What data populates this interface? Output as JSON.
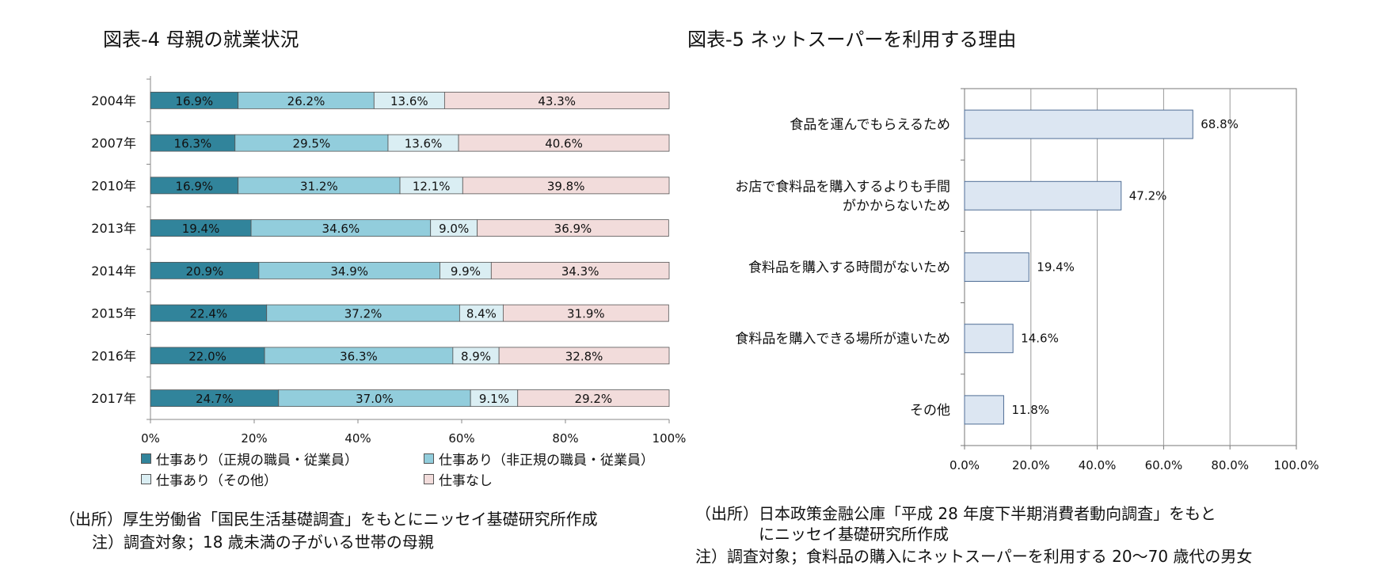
{
  "fig4": {
    "title": "図表-4  母親の就業状況",
    "notes": [
      "（出所）厚生労働省「国民生活基礎調査」をもとにニッセイ基礎研究所作成",
      "注）調査対象；18 歳未満の子がいる世帯の母親"
    ]
  },
  "fig5": {
    "title": "図表-5  ネットスーパーを利用する理由",
    "notes": [
      "（出所）日本政策金融公庫「平成 28 年度下半期消費者動向調査」をもと",
      "にニッセイ基礎研究所作成",
      "注）調査対象；食料品の購入にネットスーパーを利用する 20～70 歳代の男女"
    ]
  },
  "chart_data": [
    {
      "type": "bar",
      "orientation": "horizontal",
      "stacked": "percent",
      "categories": [
        "2004年",
        "2007年",
        "2010年",
        "2013年",
        "2014年",
        "2015年",
        "2016年",
        "2017年"
      ],
      "series": [
        {
          "name": "仕事あり（正規の職員・従業員）",
          "color": "#31849b",
          "values": [
            16.9,
            16.3,
            16.9,
            19.4,
            20.9,
            22.4,
            22.0,
            24.7
          ],
          "labels": [
            "16.9%",
            "16.3%",
            "16.9%",
            "19.4%",
            "20.9%",
            "22.4%",
            "22.0%",
            "24.7%"
          ]
        },
        {
          "name": "仕事あり（非正規の職員・従業員）",
          "color": "#92cddc",
          "values": [
            26.2,
            29.5,
            31.2,
            34.6,
            34.9,
            37.2,
            36.3,
            37.0
          ],
          "labels": [
            "26.2%",
            "29.5%",
            "31.2%",
            "34.6%",
            "34.9%",
            "37.2%",
            "36.3%",
            "37.0%"
          ]
        },
        {
          "name": "仕事あり（その他）",
          "color": "#daeef3",
          "values": [
            13.6,
            13.6,
            12.1,
            9.0,
            9.9,
            8.4,
            8.9,
            9.1
          ],
          "labels": [
            "13.6%",
            "13.6%",
            "12.1%",
            "9.0%",
            "9.9%",
            "8.4%",
            "8.9%",
            "9.1%"
          ]
        },
        {
          "name": "仕事なし",
          "color": "#f2dcdb",
          "values": [
            43.3,
            40.6,
            39.8,
            36.9,
            34.3,
            31.9,
            32.8,
            29.2
          ],
          "labels": [
            "43.3%",
            "40.6%",
            "39.8%",
            "36.9%",
            "34.3%",
            "31.9%",
            "32.8%",
            "29.2%"
          ]
        }
      ],
      "xlim": [
        0,
        100
      ],
      "xticks": [
        "0%",
        "20%",
        "40%",
        "60%",
        "80%",
        "100%"
      ],
      "legend": "bottom",
      "grid": false
    },
    {
      "type": "bar",
      "orientation": "horizontal",
      "categories": [
        [
          "食品を運んでもらえるため"
        ],
        [
          "お店で食料品を購入するよりも手間",
          "がかからないため"
        ],
        [
          "食料品を購入する時間がないため"
        ],
        [
          "食料品を購入できる場所が遠いため"
        ],
        [
          "その他"
        ]
      ],
      "values": [
        68.8,
        47.2,
        19.4,
        14.6,
        11.8
      ],
      "labels": [
        "68.8%",
        "47.2%",
        "19.4%",
        "14.6%",
        "11.8%"
      ],
      "color": "#dce6f2",
      "xlim": [
        0,
        100
      ],
      "xticks": [
        "0.0%",
        "20.0%",
        "40.0%",
        "60.0%",
        "80.0%",
        "100.0%"
      ],
      "grid": true
    }
  ]
}
